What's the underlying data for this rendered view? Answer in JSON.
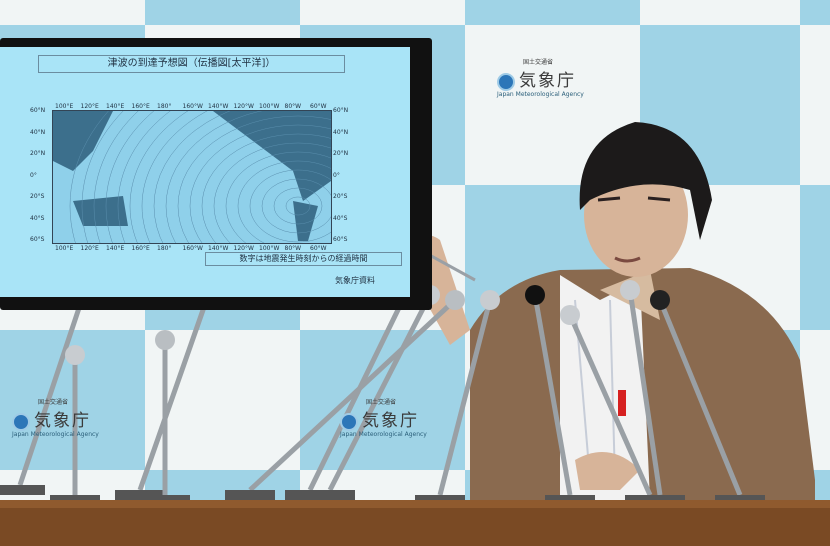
{
  "backdrop": {
    "logo": {
      "ministry": "国土交通省",
      "name": "気象庁",
      "english": "Japan Meteorological Agency"
    },
    "colors": {
      "blue": "#9fd3e6",
      "white": "#f1f5f5"
    }
  },
  "screen": {
    "title": "津波の到達予想図（伝播図[太平洋]）",
    "lon_labels": [
      "100°E",
      "120°E",
      "140°E",
      "160°E",
      "180°",
      "160°W",
      "140°W",
      "120°W",
      "100°W",
      "80°W",
      "60°W"
    ],
    "lat_labels": [
      "60°N",
      "40°N",
      "20°N",
      "0°",
      "20°S",
      "40°S",
      "60°S"
    ],
    "note": "数字は地震発生時刻からの経過時間",
    "source": "気象庁資料"
  }
}
